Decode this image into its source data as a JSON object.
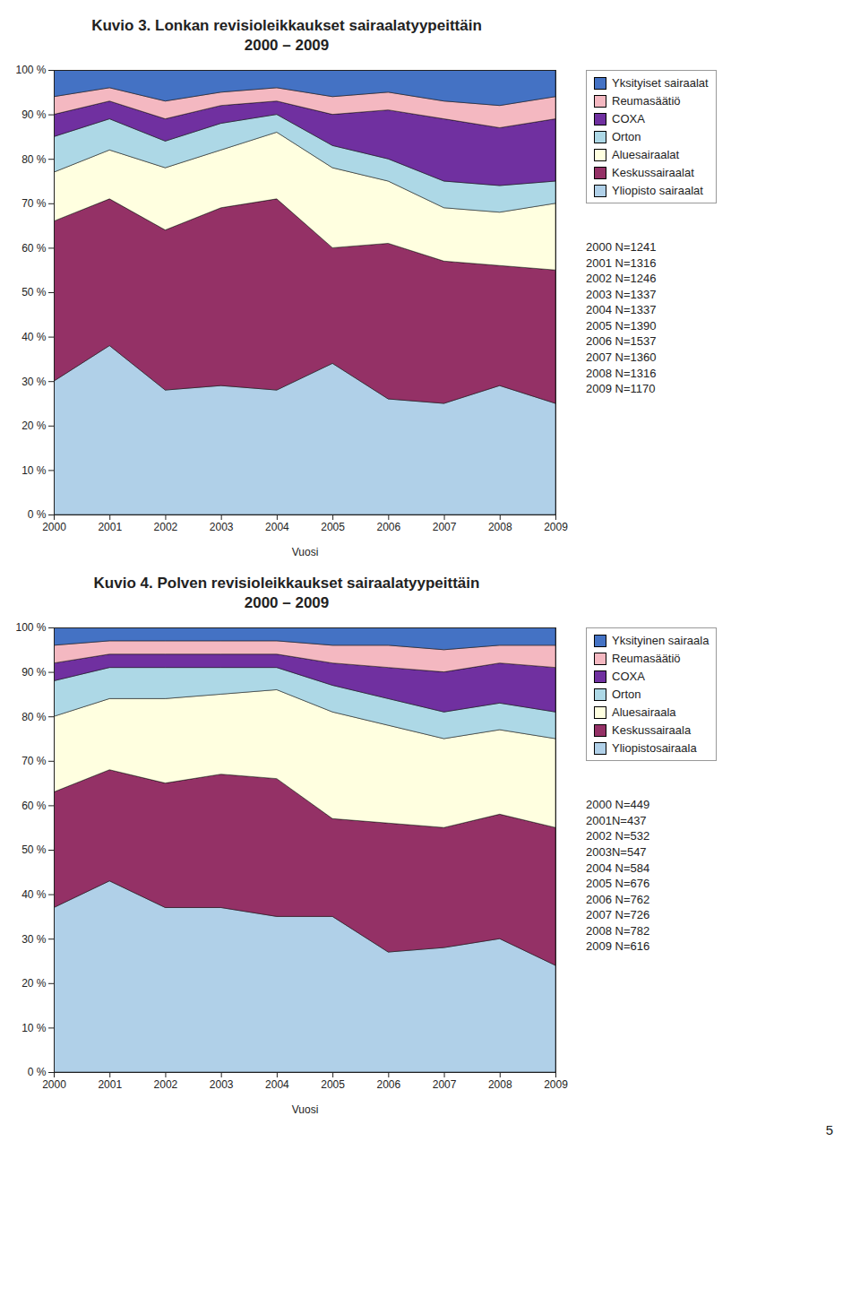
{
  "chart_data": [
    {
      "type": "area",
      "stacked": true,
      "grid": false,
      "legend": "right",
      "title": "Kuvio 3. Lonkan revisioleikkaukset sairaalatyypeittäin",
      "subtitle": "2000 – 2009",
      "x_label": "Vuosi",
      "x": [
        2000,
        2001,
        2002,
        2003,
        2004,
        2005,
        2006,
        2007,
        2008,
        2009
      ],
      "xlim": [
        2000,
        2009
      ],
      "xticks": [
        2000,
        2001,
        2002,
        2003,
        2004,
        2005,
        2006,
        2007,
        2008,
        2009
      ],
      "ylim": [
        0,
        100
      ],
      "yticks": [
        {
          "value": 0,
          "label": "0 %"
        },
        {
          "value": 10,
          "label": "10 %"
        },
        {
          "value": 20,
          "label": "20 %"
        },
        {
          "value": 30,
          "label": "30 %"
        },
        {
          "value": 40,
          "label": "40 %"
        },
        {
          "value": 50,
          "label": "50 %"
        },
        {
          "value": 60,
          "label": "60 %"
        },
        {
          "value": 70,
          "label": "70 %"
        },
        {
          "value": 80,
          "label": "80 %"
        },
        {
          "value": 90,
          "label": "90 %"
        },
        {
          "value": 100,
          "label": "100 %"
        }
      ],
      "series": [
        {
          "name": "Yliopisto sairaalat",
          "color": "#B0D0E8",
          "values": [
            30,
            38,
            28,
            29,
            28,
            34,
            26,
            25,
            29,
            25
          ]
        },
        {
          "name": "Keskussairaalat",
          "color": "#943166",
          "values": [
            36,
            33,
            36,
            40,
            43,
            26,
            35,
            32,
            27,
            30
          ]
        },
        {
          "name": "Aluesairaalat",
          "color": "#FFFFE0",
          "values": [
            11,
            11,
            14,
            13,
            15,
            18,
            14,
            12,
            12,
            15
          ]
        },
        {
          "name": "Orton",
          "color": "#ADD8E6",
          "values": [
            8,
            7,
            6,
            6,
            4,
            5,
            5,
            6,
            6,
            5
          ]
        },
        {
          "name": "COXA",
          "color": "#7030A0",
          "values": [
            5,
            4,
            5,
            4,
            3,
            7,
            11,
            14,
            13,
            14
          ]
        },
        {
          "name": "Reumasäätiö",
          "color": "#F4B8C1",
          "values": [
            4,
            3,
            4,
            3,
            3,
            4,
            4,
            4,
            5,
            5
          ]
        },
        {
          "name": "Yksityiset sairaalat",
          "color": "#4472C4",
          "values": [
            6,
            4,
            7,
            5,
            4,
            6,
            5,
            7,
            8,
            6
          ]
        }
      ],
      "annotations": [
        "2000 N=1241",
        "2001 N=1316",
        "2002 N=1246",
        "2003 N=1337",
        "2004 N=1337",
        "2005 N=1390",
        "2006 N=1537",
        "2007 N=1360",
        "2008 N=1316",
        "2009 N=1170"
      ]
    },
    {
      "type": "area",
      "stacked": true,
      "grid": false,
      "legend": "right",
      "title": "Kuvio 4. Polven revisioleikkaukset sairaalatyypeittäin",
      "subtitle": "2000 – 2009",
      "x_label": "Vuosi",
      "x": [
        2000,
        2001,
        2002,
        2003,
        2004,
        2005,
        2006,
        2007,
        2008,
        2009
      ],
      "xlim": [
        2000,
        2009
      ],
      "xticks": [
        2000,
        2001,
        2002,
        2003,
        2004,
        2005,
        2006,
        2007,
        2008,
        2009
      ],
      "ylim": [
        0,
        100
      ],
      "yticks": [
        {
          "value": 0,
          "label": "0 %"
        },
        {
          "value": 10,
          "label": "10 %"
        },
        {
          "value": 20,
          "label": "20 %"
        },
        {
          "value": 30,
          "label": "30 %"
        },
        {
          "value": 40,
          "label": "40 %"
        },
        {
          "value": 50,
          "label": "50 %"
        },
        {
          "value": 60,
          "label": "60 %"
        },
        {
          "value": 70,
          "label": "70 %"
        },
        {
          "value": 80,
          "label": "80 %"
        },
        {
          "value": 90,
          "label": "90 %"
        },
        {
          "value": 100,
          "label": "100 %"
        }
      ],
      "series": [
        {
          "name": "Yliopistosairaala",
          "color": "#B0D0E8",
          "values": [
            37,
            43,
            37,
            37,
            35,
            35,
            27,
            28,
            30,
            24
          ]
        },
        {
          "name": "Keskussairaala",
          "color": "#943166",
          "values": [
            26,
            25,
            28,
            30,
            31,
            22,
            29,
            27,
            28,
            31
          ]
        },
        {
          "name": "Aluesairaala",
          "color": "#FFFFE0",
          "values": [
            17,
            16,
            19,
            18,
            20,
            24,
            22,
            20,
            19,
            20
          ]
        },
        {
          "name": "Orton",
          "color": "#ADD8E6",
          "values": [
            8,
            7,
            7,
            6,
            5,
            6,
            6,
            6,
            6,
            6
          ]
        },
        {
          "name": "COXA",
          "color": "#7030A0",
          "values": [
            4,
            3,
            3,
            3,
            3,
            5,
            7,
            9,
            9,
            10
          ]
        },
        {
          "name": "Reumasäätiö",
          "color": "#F4B8C1",
          "values": [
            4,
            3,
            3,
            3,
            3,
            4,
            5,
            5,
            4,
            5
          ]
        },
        {
          "name": "Yksityinen sairaala",
          "color": "#4472C4",
          "values": [
            4,
            3,
            3,
            3,
            3,
            4,
            4,
            5,
            4,
            4
          ]
        }
      ],
      "annotations": [
        "2000 N=449",
        "2001N=437",
        "2002 N=532",
        "2003N=547",
        "2004 N=584",
        "2005 N=676",
        "2006 N=762",
        "2007 N=726",
        "2008 N=782",
        "2009 N=616"
      ]
    }
  ],
  "annotations": [
    "5"
  ]
}
